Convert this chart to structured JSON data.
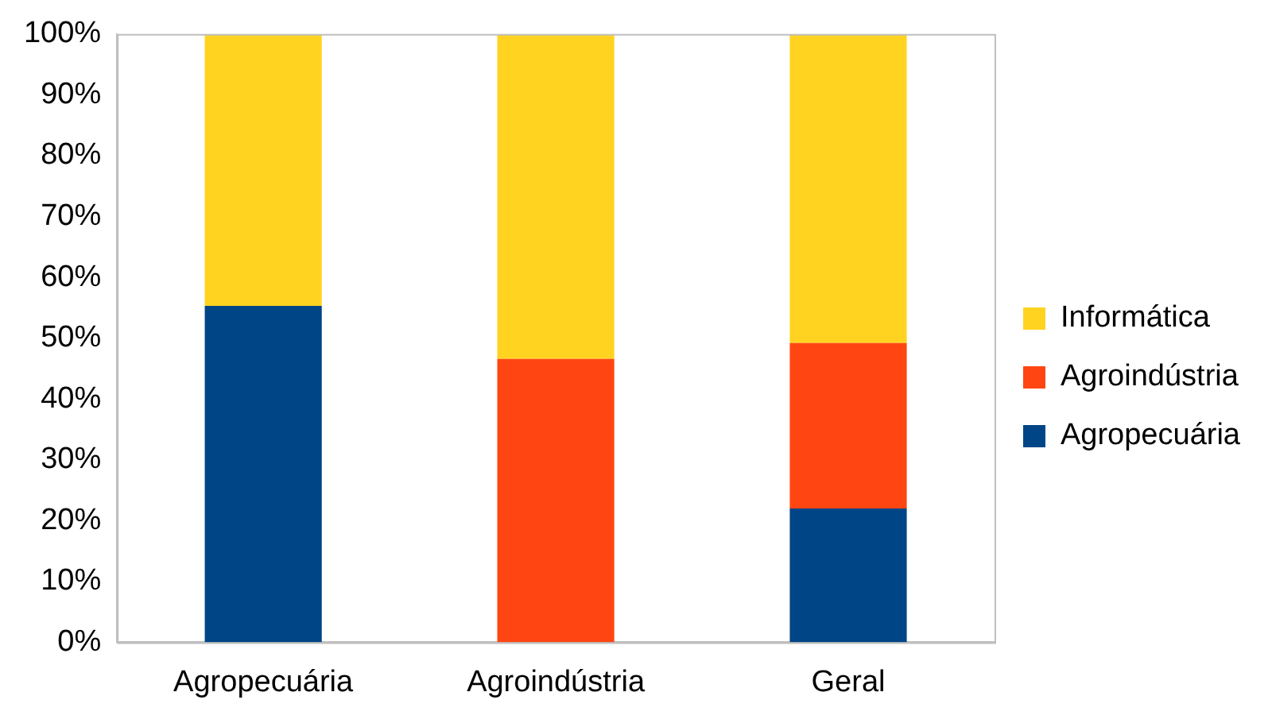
{
  "chart_data": {
    "type": "bar",
    "stacked": true,
    "categories": [
      "Agropecuária",
      "Agroindústria",
      "Geral"
    ],
    "series": [
      {
        "name": "Agropecuária",
        "color": "#004586",
        "values": [
          55.3,
          0,
          22
        ]
      },
      {
        "name": "Agroindústria",
        "color": "#ff4612",
        "values": [
          0,
          46.6,
          27.2
        ]
      },
      {
        "name": "Informática",
        "color": "#ffd320",
        "values": [
          44.7,
          53.4,
          50.8
        ]
      }
    ],
    "ylim": [
      0,
      100
    ],
    "yticks": [
      {
        "value": 0,
        "label": "0%"
      },
      {
        "value": 10,
        "label": "10%"
      },
      {
        "value": 20,
        "label": "20%"
      },
      {
        "value": 30,
        "label": "30%"
      },
      {
        "value": 40,
        "label": "40%"
      },
      {
        "value": 50,
        "label": "50%"
      },
      {
        "value": 60,
        "label": "60%"
      },
      {
        "value": 70,
        "label": "70%"
      },
      {
        "value": 80,
        "label": "80%"
      },
      {
        "value": 90,
        "label": "90%"
      },
      {
        "value": 100,
        "label": "100%"
      }
    ],
    "grid": false,
    "legend": "right"
  }
}
